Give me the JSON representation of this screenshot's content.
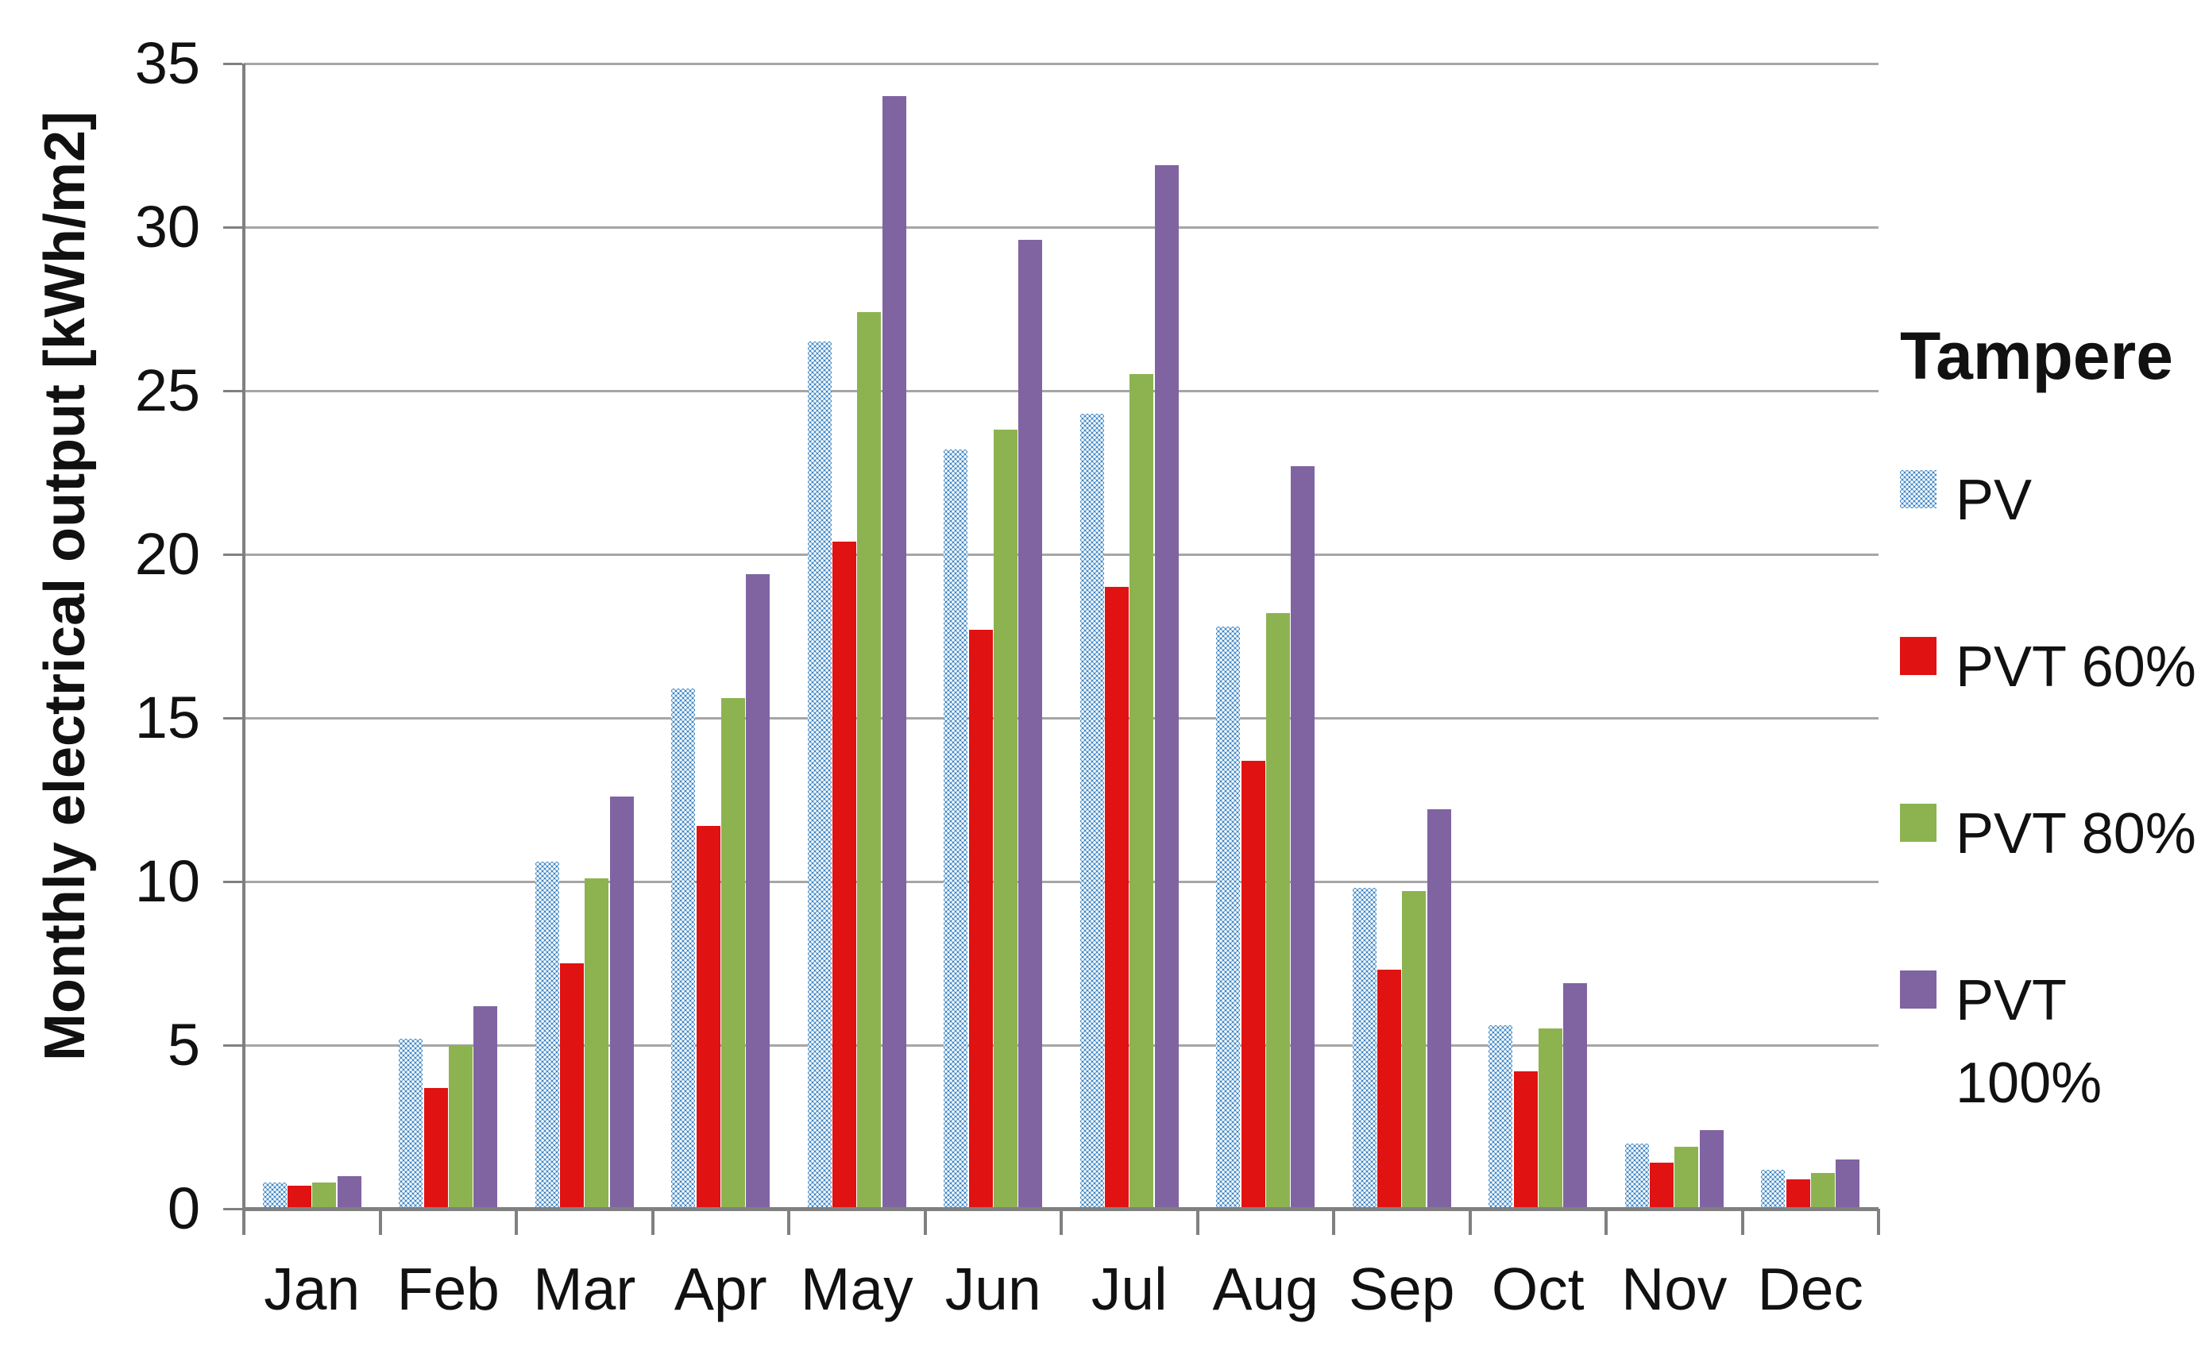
{
  "chart_data": {
    "type": "bar",
    "title": "",
    "legend_title": "Tampere",
    "legend_position": "right",
    "ylabel": "Monthly electrical output [kWh/m2]",
    "xlabel": "",
    "ylim": [
      0,
      35
    ],
    "yticks": [
      0,
      5,
      10,
      15,
      20,
      25,
      30,
      35
    ],
    "grid": true,
    "categories": [
      "Jan",
      "Feb",
      "Mar",
      "Apr",
      "May",
      "Jun",
      "Jul",
      "Aug",
      "Sep",
      "Oct",
      "Nov",
      "Dec"
    ],
    "series": [
      {
        "name": "PV",
        "legend_lines": [
          "PV"
        ],
        "color": "#3E86C4",
        "fill_pattern": "white-dot-grid",
        "values": [
          0.8,
          5.2,
          10.6,
          15.9,
          26.5,
          23.2,
          24.3,
          17.8,
          9.8,
          5.6,
          2.0,
          1.2
        ]
      },
      {
        "name": "PVT 60%",
        "legend_lines": [
          "PVT 60%"
        ],
        "color": "#E01212",
        "fill_pattern": "solid",
        "values": [
          0.7,
          3.7,
          7.5,
          11.7,
          20.4,
          17.7,
          19.0,
          13.7,
          7.3,
          4.2,
          1.4,
          0.9
        ]
      },
      {
        "name": "PVT 80%",
        "legend_lines": [
          "PVT 80%"
        ],
        "color": "#8CB350",
        "fill_pattern": "solid",
        "values": [
          0.8,
          5.0,
          10.1,
          15.6,
          27.4,
          23.8,
          25.5,
          18.2,
          9.7,
          5.5,
          1.9,
          1.1
        ]
      },
      {
        "name": "PVT 100%",
        "legend_lines": [
          "PVT",
          "100%"
        ],
        "color": "#8064A2",
        "fill_pattern": "solid",
        "values": [
          1.0,
          6.2,
          12.6,
          19.4,
          34.0,
          29.6,
          31.9,
          22.7,
          12.2,
          6.9,
          2.4,
          1.5
        ]
      }
    ]
  },
  "axis_colors": {
    "gridline": "#A6A6A6",
    "axis_line": "#808080",
    "text": "#111111"
  }
}
